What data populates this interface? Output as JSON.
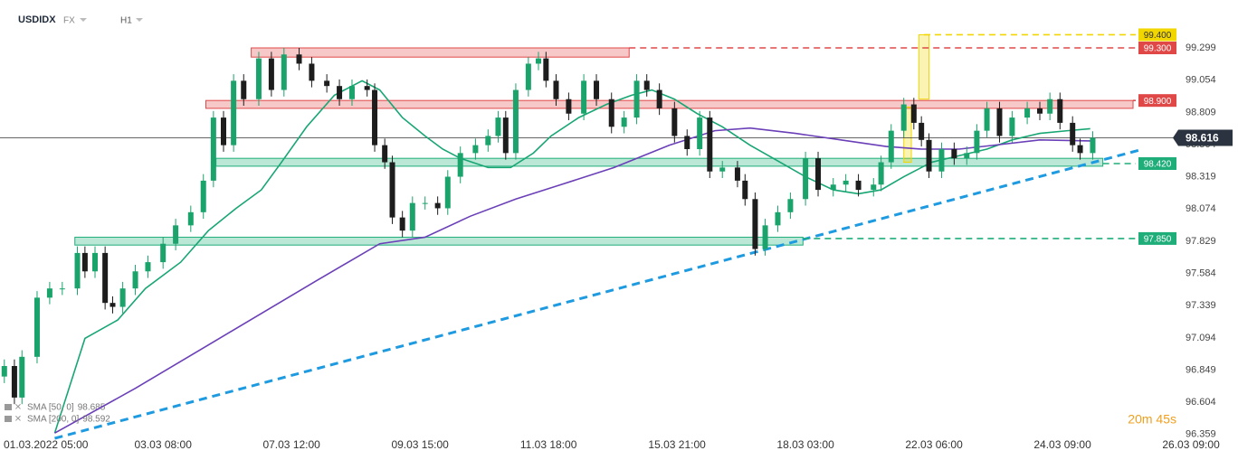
{
  "chart_data": {
    "type": "candlestick",
    "symbol": "USDIDX",
    "market": "FX",
    "interval": "H1",
    "countdown": "20m 45s",
    "xlim": [
      -19,
      444
    ],
    "ylim": [
      96.33,
      99.63
    ],
    "xticks": [
      {
        "value": -6,
        "label": "01.03.2022 05:00"
      },
      {
        "value": 45,
        "label": "03.03 08:00"
      },
      {
        "value": 96,
        "label": "07.03 12:00"
      },
      {
        "value": 147,
        "label": "09.03 15:00"
      },
      {
        "value": 198,
        "label": "11.03 18:00"
      },
      {
        "value": 249,
        "label": "15.03 21:00"
      },
      {
        "value": 300,
        "label": "18.03 03:00"
      },
      {
        "value": 351,
        "label": "22.03 06:00"
      },
      {
        "value": 402,
        "label": "24.03 09:00"
      },
      {
        "value": 453,
        "label": "26.03 09:00"
      }
    ],
    "yticks": [
      99.299,
      99.054,
      98.809,
      98.564,
      98.319,
      98.074,
      97.829,
      97.584,
      97.339,
      97.094,
      96.849,
      96.604,
      96.359
    ],
    "up_color": "#1aa36b",
    "down_color": "#1d1d1d",
    "x": [
      -18,
      -14,
      -11,
      -5,
      0,
      5,
      11,
      14,
      18,
      22,
      25,
      29,
      34,
      39,
      45,
      50,
      56,
      61,
      65,
      69,
      73,
      77,
      83,
      88,
      93,
      99,
      104,
      110,
      115,
      120,
      126,
      129,
      133,
      136,
      140,
      144,
      149,
      154,
      158,
      163,
      169,
      174,
      178,
      181,
      185,
      190,
      194,
      197,
      201,
      206,
      212,
      217,
      223,
      228,
      233,
      237,
      242,
      248,
      253,
      258,
      262,
      267,
      273,
      276,
      280,
      284,
      289,
      294,
      300,
      305,
      311,
      316,
      321,
      327,
      330,
      334,
      339,
      343,
      346,
      349,
      354,
      359,
      364,
      368,
      372,
      377,
      382,
      388,
      393,
      397,
      401,
      406,
      409,
      414
    ],
    "open": [
      96.8,
      96.88,
      96.64,
      96.95,
      97.4,
      97.47,
      97.47,
      97.74,
      97.6,
      97.74,
      97.36,
      97.33,
      97.47,
      97.6,
      97.67,
      97.81,
      97.95,
      98.05,
      98.29,
      98.77,
      98.56,
      99.05,
      98.91,
      99.22,
      98.98,
      99.25,
      99.18,
      99.05,
      99.01,
      98.91,
      99.01,
      98.98,
      98.56,
      98.43,
      98.01,
      97.91,
      98.12,
      98.12,
      98.08,
      98.32,
      98.5,
      98.56,
      98.63,
      98.77,
      98.5,
      98.98,
      99.18,
      99.22,
      99.05,
      98.91,
      98.8,
      99.05,
      98.91,
      98.7,
      98.77,
      99.05,
      98.98,
      98.84,
      98.63,
      98.53,
      98.77,
      98.36,
      98.39,
      98.29,
      98.15,
      97.77,
      97.95,
      98.05,
      98.15,
      98.46,
      98.22,
      98.26,
      98.29,
      98.22,
      98.26,
      98.43,
      98.67,
      98.87,
      98.73,
      98.6,
      98.36,
      98.53,
      98.46,
      98.5,
      98.67,
      98.84,
      98.63,
      98.77,
      98.84,
      98.8,
      98.91,
      98.73,
      98.56,
      98.5
    ],
    "high": [
      96.93,
      96.93,
      97.0,
      97.45,
      97.52,
      97.52,
      97.79,
      97.79,
      97.79,
      97.79,
      97.41,
      97.52,
      97.65,
      97.72,
      97.86,
      98.0,
      98.1,
      98.34,
      98.82,
      98.82,
      99.1,
      99.1,
      99.27,
      99.27,
      99.3,
      99.3,
      99.23,
      99.1,
      99.06,
      99.06,
      99.06,
      99.03,
      98.61,
      98.48,
      98.06,
      98.17,
      98.17,
      98.17,
      98.37,
      98.55,
      98.61,
      98.68,
      98.82,
      98.82,
      99.03,
      99.23,
      99.27,
      99.27,
      99.1,
      98.96,
      99.1,
      99.1,
      98.96,
      98.82,
      99.1,
      99.1,
      99.03,
      98.89,
      98.68,
      98.82,
      98.82,
      98.44,
      98.44,
      98.34,
      98.2,
      98.0,
      98.1,
      98.2,
      98.51,
      98.51,
      98.31,
      98.34,
      98.34,
      98.31,
      98.48,
      98.72,
      98.92,
      98.92,
      98.78,
      98.65,
      98.58,
      98.58,
      98.55,
      98.72,
      98.89,
      98.89,
      98.82,
      98.89,
      98.89,
      98.96,
      98.96,
      98.78,
      98.61,
      98.666
    ],
    "low": [
      96.75,
      96.59,
      96.59,
      96.9,
      97.35,
      97.42,
      97.42,
      97.55,
      97.55,
      97.31,
      97.28,
      97.28,
      97.42,
      97.55,
      97.62,
      97.76,
      97.9,
      98.0,
      98.24,
      98.51,
      98.51,
      98.86,
      98.86,
      98.93,
      98.93,
      99.13,
      99.0,
      98.96,
      98.86,
      98.86,
      98.93,
      98.51,
      98.38,
      97.96,
      97.86,
      97.86,
      98.07,
      98.03,
      98.03,
      98.27,
      98.45,
      98.51,
      98.58,
      98.45,
      98.45,
      98.93,
      99.13,
      99.0,
      98.86,
      98.75,
      98.75,
      98.86,
      98.65,
      98.65,
      98.72,
      98.93,
      98.79,
      98.58,
      98.48,
      98.48,
      98.31,
      98.31,
      98.24,
      98.1,
      97.72,
      97.72,
      97.9,
      98.0,
      98.1,
      98.17,
      98.17,
      98.21,
      98.17,
      98.17,
      98.21,
      98.38,
      98.62,
      98.68,
      98.55,
      98.31,
      98.31,
      98.41,
      98.41,
      98.45,
      98.62,
      98.58,
      98.58,
      98.72,
      98.75,
      98.75,
      98.68,
      98.51,
      98.45,
      98.45
    ],
    "close": [
      96.88,
      96.64,
      96.95,
      97.4,
      97.47,
      97.47,
      97.74,
      97.6,
      97.74,
      97.36,
      97.33,
      97.47,
      97.6,
      97.67,
      97.81,
      97.95,
      98.05,
      98.29,
      98.77,
      98.56,
      99.05,
      98.91,
      99.22,
      98.98,
      99.25,
      99.18,
      99.05,
      99.01,
      98.91,
      99.01,
      98.98,
      98.56,
      98.43,
      98.01,
      97.91,
      98.12,
      98.12,
      98.08,
      98.32,
      98.5,
      98.56,
      98.63,
      98.77,
      98.5,
      98.98,
      99.18,
      99.22,
      99.05,
      98.91,
      98.8,
      99.05,
      98.91,
      98.7,
      98.77,
      99.05,
      98.98,
      98.84,
      98.63,
      98.53,
      98.77,
      98.36,
      98.39,
      98.29,
      98.15,
      97.77,
      97.95,
      98.05,
      98.15,
      98.46,
      98.22,
      98.26,
      98.29,
      98.22,
      98.26,
      98.43,
      98.67,
      98.87,
      98.73,
      98.6,
      98.36,
      98.53,
      98.46,
      98.5,
      98.67,
      98.84,
      98.63,
      98.77,
      98.84,
      98.8,
      98.91,
      98.73,
      98.56,
      98.5,
      98.616
    ],
    "last_price": 98.616,
    "series": [
      {
        "name": "SMA [50, 0]",
        "last_value_label": "98.685",
        "color": "#17a673",
        "x": [
          2,
          14,
          27,
          38,
          52,
          63,
          74,
          84,
          92,
          102,
          113,
          124,
          131,
          140,
          149,
          156,
          163,
          174,
          183,
          192,
          199,
          210,
          221,
          231,
          239,
          248,
          257,
          267,
          278,
          289,
          300,
          311,
          321,
          330,
          339,
          350,
          361,
          372,
          382,
          393,
          404,
          413
        ],
        "values": [
          96.37,
          97.09,
          97.23,
          97.47,
          97.67,
          97.91,
          98.08,
          98.22,
          98.43,
          98.7,
          98.94,
          99.05,
          98.98,
          98.77,
          98.63,
          98.53,
          98.46,
          98.39,
          98.39,
          98.5,
          98.63,
          98.77,
          98.87,
          98.94,
          98.98,
          98.91,
          98.8,
          98.7,
          98.56,
          98.44,
          98.32,
          98.22,
          98.19,
          98.22,
          98.32,
          98.43,
          98.48,
          98.53,
          98.6,
          98.65,
          98.67,
          98.685
        ]
      },
      {
        "name": "SMA [200, 0]",
        "last_value_label": "98.592",
        "color": "#6a3fb8",
        "x": [
          2,
          34,
          70,
          106,
          131,
          149,
          167,
          185,
          203,
          224,
          246,
          264,
          278,
          296,
          314,
          332,
          346,
          361,
          375,
          393,
          413
        ],
        "values": [
          96.37,
          96.71,
          97.12,
          97.53,
          97.81,
          97.86,
          98.02,
          98.15,
          98.26,
          98.39,
          98.56,
          98.67,
          98.69,
          98.65,
          98.6,
          98.55,
          98.53,
          98.53,
          98.56,
          98.6,
          98.592
        ]
      }
    ],
    "zones": [
      {
        "x": [
          80,
          230
        ],
        "y": [
          99.23,
          99.3
        ],
        "color": "#e04848"
      },
      {
        "x": [
          62,
          430
        ],
        "y": [
          98.84,
          98.9
        ],
        "color": "#e04848"
      },
      {
        "x": [
          66,
          418
        ],
        "y": [
          98.4,
          98.46
        ],
        "color": "#1fae7a"
      },
      {
        "x": [
          10,
          299
        ],
        "y": [
          97.8,
          97.86
        ],
        "color": "#1fae7a"
      },
      {
        "x": [
          345,
          349
        ],
        "y": [
          98.91,
          99.4
        ],
        "color": "#f2d600"
      },
      {
        "x": [
          339,
          342
        ],
        "y": [
          98.43,
          98.85
        ],
        "color": "#f2d600"
      }
    ],
    "levels": [
      {
        "value": 99.4,
        "label": "99.400",
        "color": "#f2d600",
        "from": 347
      },
      {
        "value": 99.3,
        "label": "99.300",
        "color": "#e04848",
        "from": 230
      },
      {
        "value": 98.9,
        "label": "98.900",
        "color": "#e04848",
        "from": 430
      },
      {
        "value": 98.42,
        "label": "98.420",
        "color": "#1fae7a",
        "from": 418
      },
      {
        "value": 97.85,
        "label": "97.850",
        "color": "#1fae7a",
        "from": 299
      }
    ],
    "trendline": {
      "x": [
        2,
        434
      ],
      "y": [
        96.33,
        98.53
      ],
      "color": "#1e9be0"
    }
  }
}
